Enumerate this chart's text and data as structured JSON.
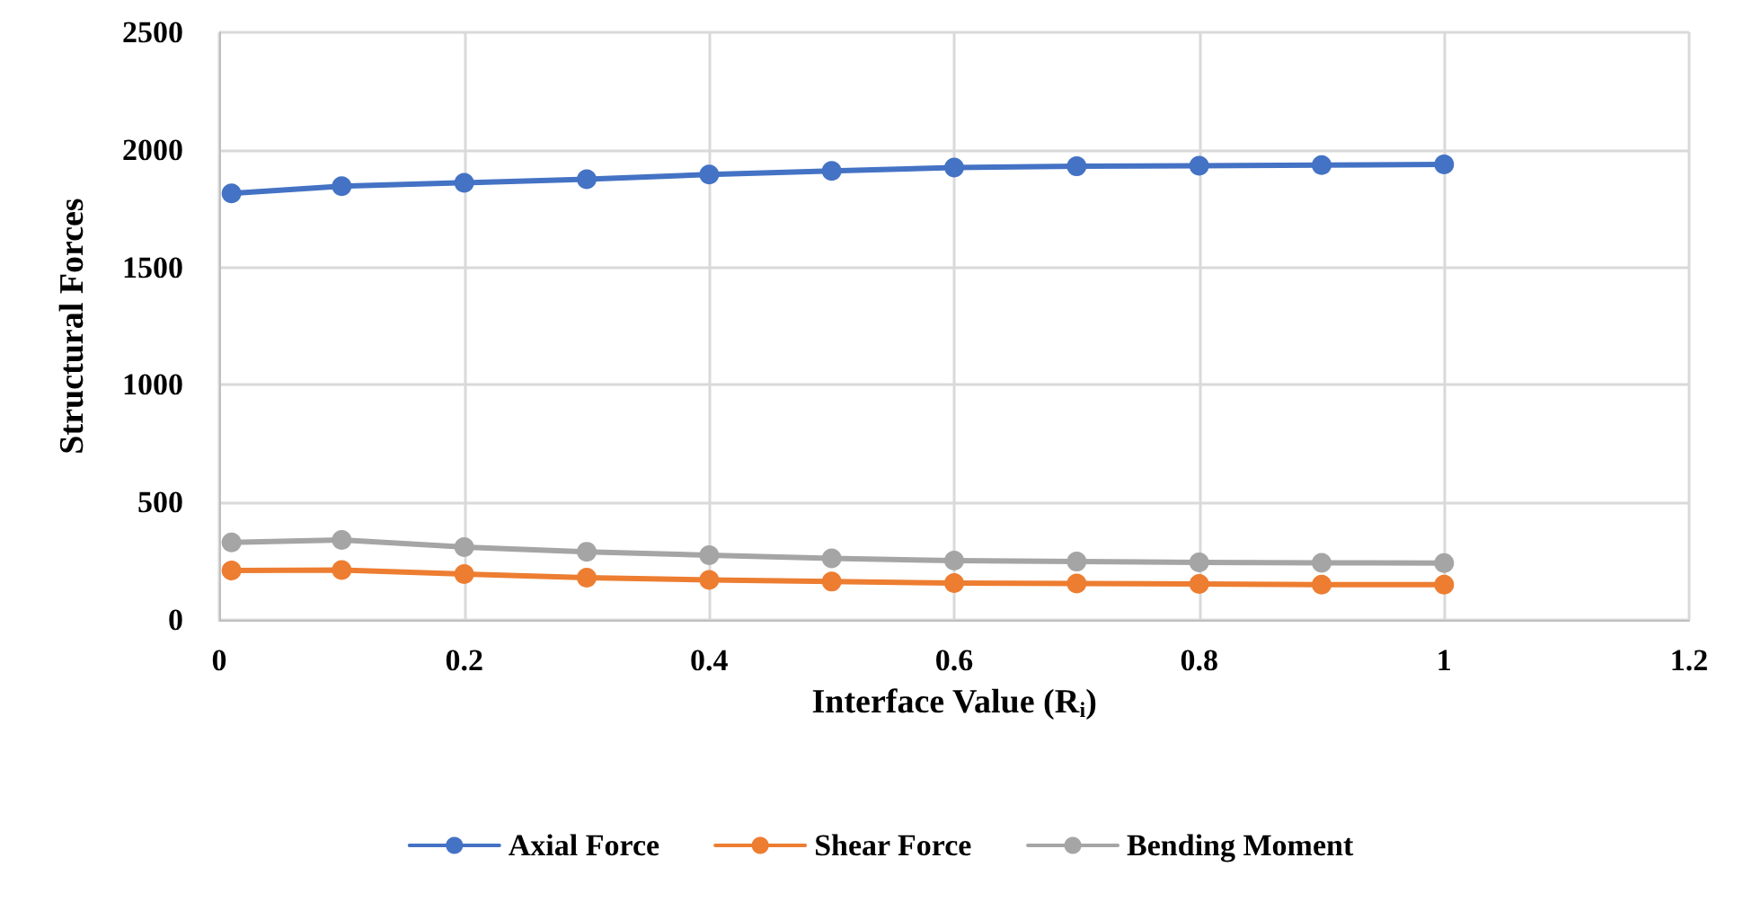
{
  "chart_data": {
    "type": "line",
    "xlabel": "Interface Value (R$_{i}$)",
    "ylabel": "Structural Forces",
    "x": [
      0.01,
      0.1,
      0.2,
      0.3,
      0.4,
      0.5,
      0.6,
      0.7,
      0.8,
      0.9,
      1.0
    ],
    "series": [
      {
        "name": "Axial Force",
        "color": "#4472c4",
        "values": [
          1815,
          1845,
          1860,
          1875,
          1895,
          1910,
          1925,
          1930,
          1932,
          1935,
          1938
        ]
      },
      {
        "name": "Shear Force",
        "color": "#ed7d31",
        "values": [
          210,
          212,
          195,
          180,
          170,
          163,
          157,
          155,
          153,
          150,
          150
        ]
      },
      {
        "name": "Bending Moment",
        "color": "#a5a5a5",
        "values": [
          330,
          340,
          310,
          290,
          275,
          262,
          252,
          248,
          245,
          243,
          242
        ]
      }
    ],
    "xlim": [
      0,
      1.2
    ],
    "xticks": [
      0,
      0.2,
      0.4,
      0.6,
      0.8,
      1,
      1.2
    ],
    "ylim": [
      0,
      2500
    ],
    "yticks": [
      0,
      500,
      1000,
      1500,
      2000,
      2500
    ],
    "grid": true,
    "legend": "bottom",
    "marker": "circle",
    "line_style": "solid"
  }
}
